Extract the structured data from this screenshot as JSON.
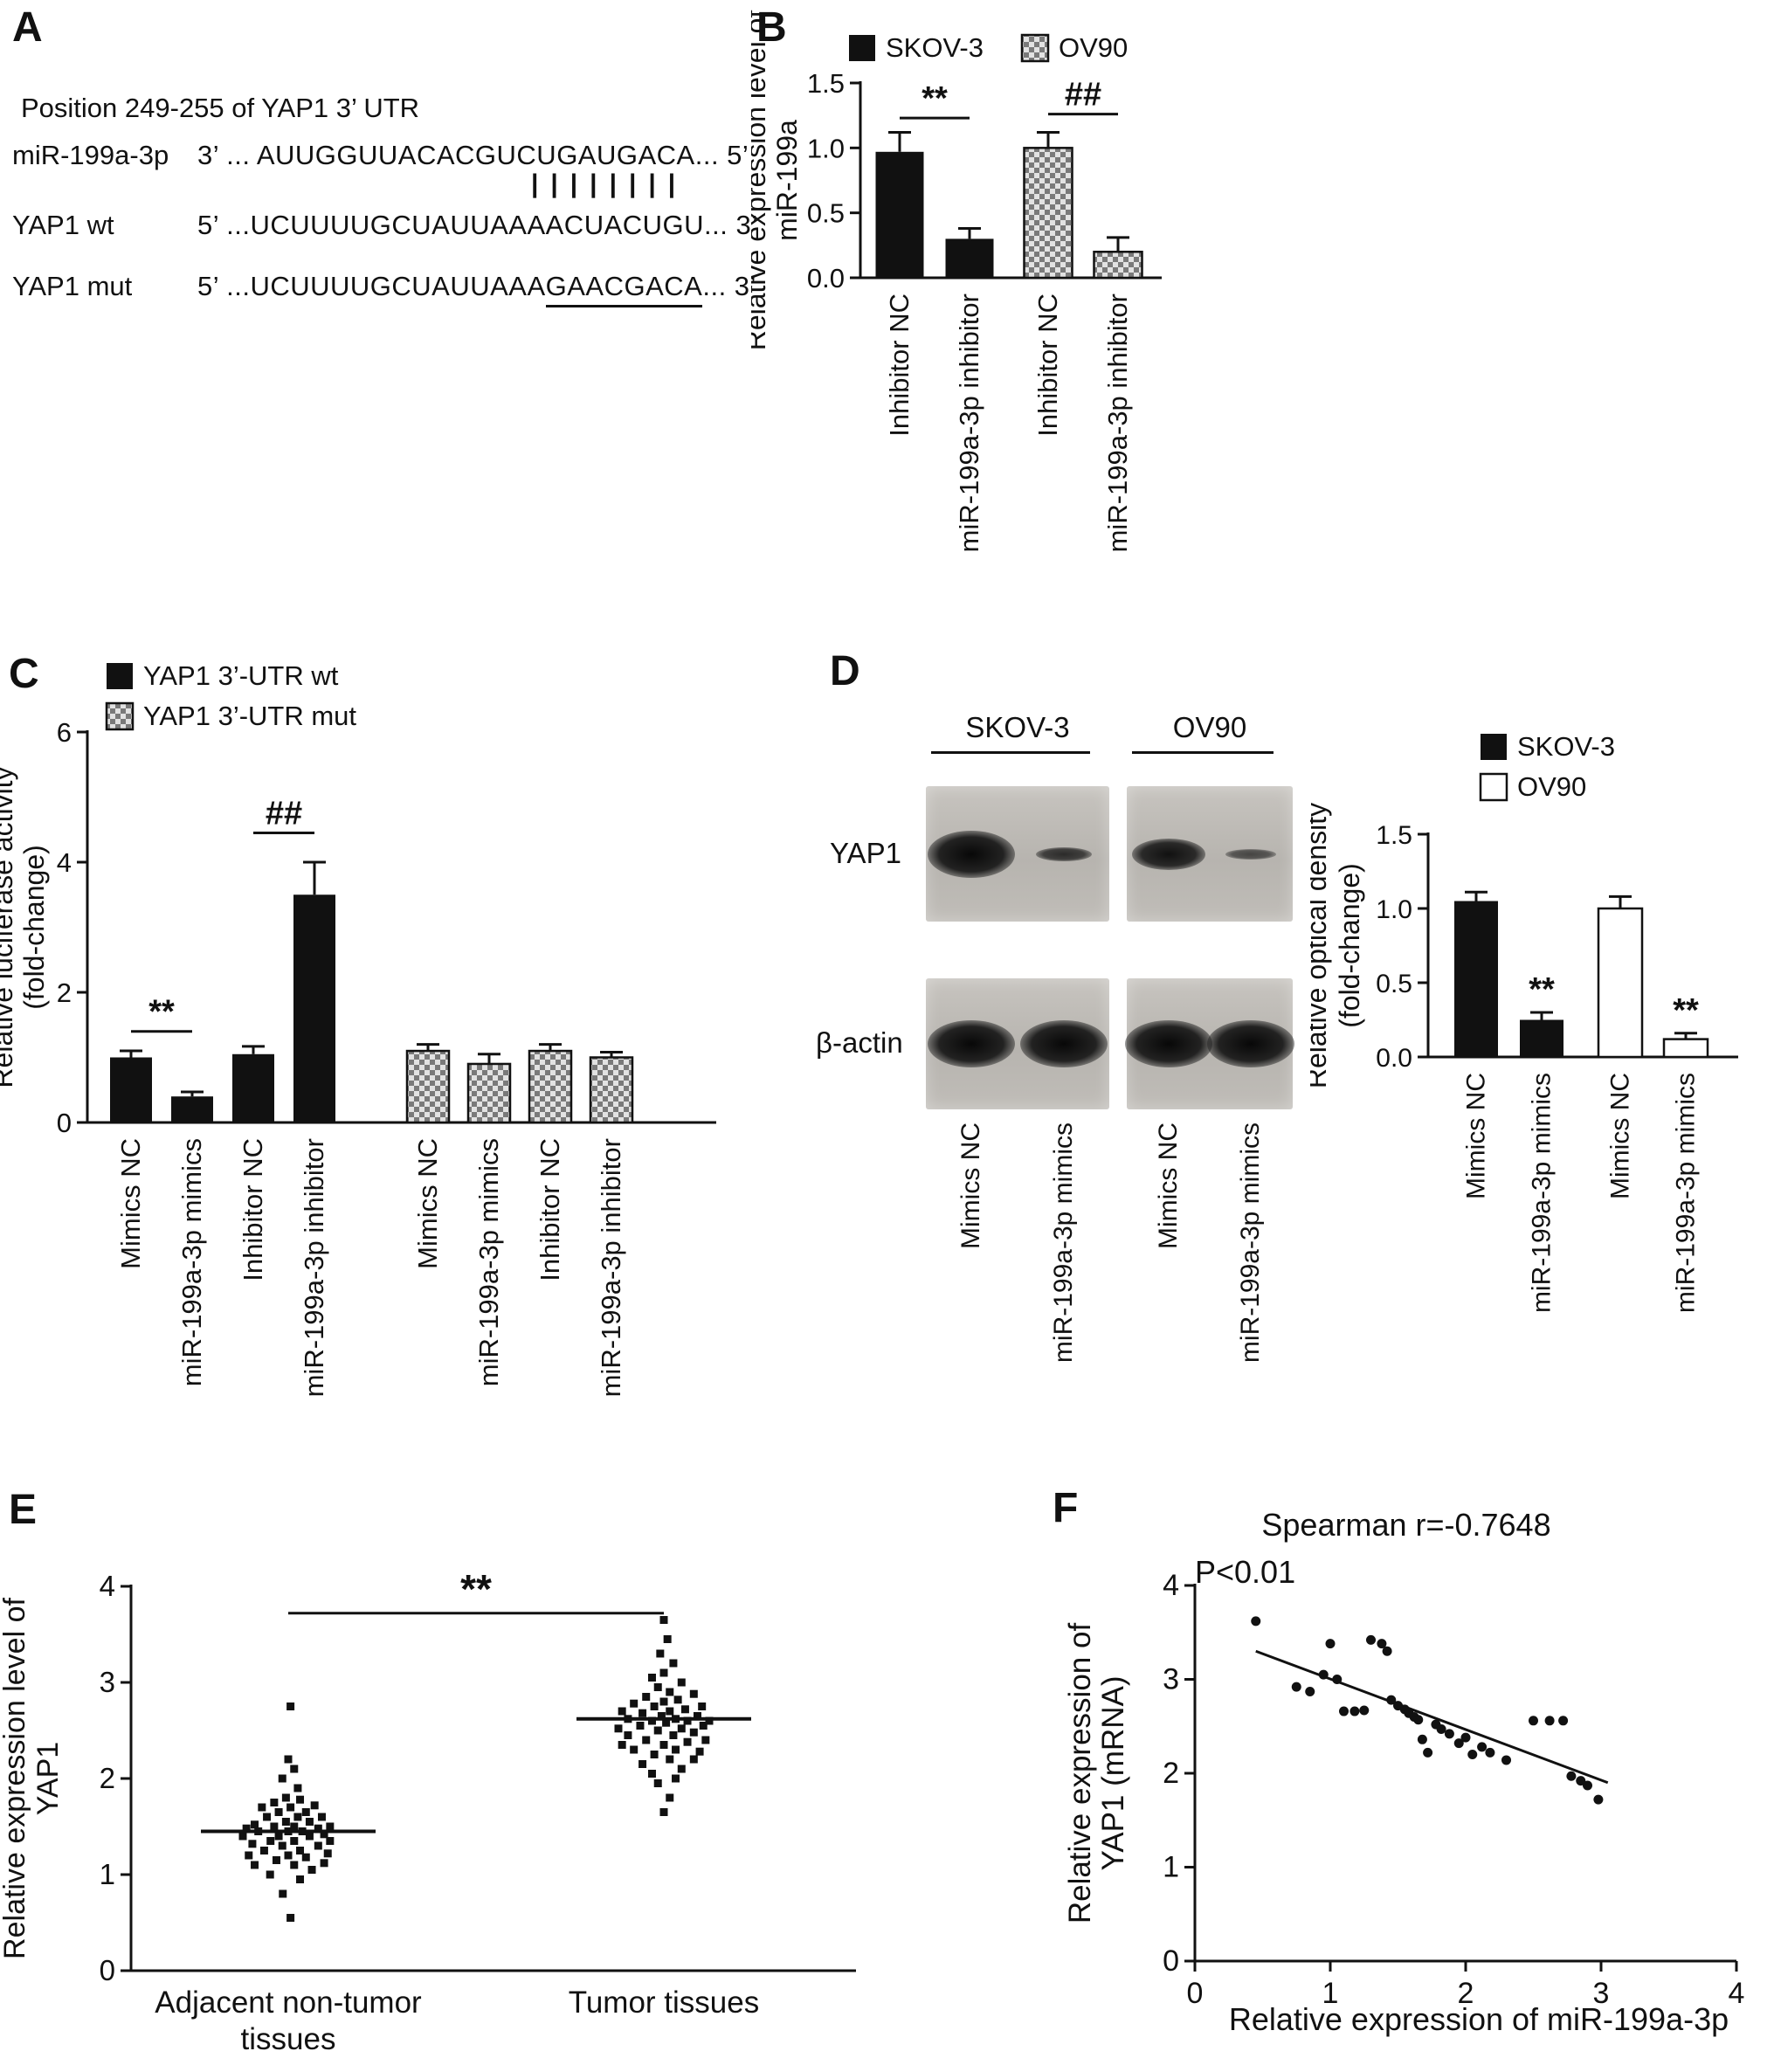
{
  "colors": {
    "ink": "#111111",
    "checker_dark": "#7a7a7a",
    "checker_light": "#e2e2e2",
    "blot_bg": "#bcb9b4",
    "white_bar": "#ffffff"
  },
  "panels": {
    "A": {
      "label": "A",
      "title": "Position 249-255 of YAP1 3’ UTR",
      "mirna": {
        "name": "miR-199a-3p",
        "prefix": "3’ ... ",
        "seq": "AUUGGUUACACGUCUGAUGACA",
        "suffix": "... 5’"
      },
      "pairing_marks": "||||||||",
      "wt": {
        "name": "YAP1 wt",
        "prefix": "5’ ...",
        "seq": "UCUUUUGCUAUUAAAACUACUGU",
        "suffix": "... 3’"
      },
      "mut": {
        "name": "YAP1 mut",
        "prefix": "5’ ...",
        "seq_plain": "UCUUUUGCUAUUAAA",
        "seq_underlined": "GAACGACA",
        "suffix": "... 3’"
      }
    },
    "B": {
      "label": "B"
    },
    "C": {
      "label": "C"
    },
    "D": {
      "label": "D",
      "blot": {
        "cell_lines": [
          "SKOV-3",
          "OV90"
        ],
        "protein_rows": [
          {
            "name": "YAP1",
            "bands": [
              "strong",
              "weak",
              "medium",
              "faint"
            ]
          },
          {
            "name": "β-actin",
            "bands": [
              "strong",
              "strong",
              "strong",
              "strong"
            ]
          }
        ],
        "lane_labels": [
          "Mimics NC",
          "miR-199a-3p mimics",
          "Mimics NC",
          "miR-199a-3p mimics"
        ]
      }
    },
    "E": {
      "label": "E"
    },
    "F": {
      "label": "F"
    }
  },
  "chart_data": [
    {
      "id": "B",
      "type": "bar",
      "ylabel_lines": [
        "Relative expression level of",
        "miR-199a"
      ],
      "ylim": [
        0,
        1.5
      ],
      "yticks": [
        {
          "v": 0,
          "label": "0.0"
        },
        {
          "v": 0.5,
          "label": "0.5"
        },
        {
          "v": 1,
          "label": "1.0"
        },
        {
          "v": 1.5,
          "label": "1.5"
        }
      ],
      "legend": [
        {
          "name": "SKOV-3",
          "style": "black"
        },
        {
          "name": "OV90",
          "style": "checker"
        }
      ],
      "bars": [
        {
          "label": "Inhibitor NC",
          "value": 0.97,
          "error": 0.15,
          "style": "black"
        },
        {
          "label": "miR-199a-3p inhibitor",
          "value": 0.3,
          "error": 0.08,
          "style": "black"
        },
        {
          "label": "Inhibitor NC",
          "value": 1.0,
          "error": 0.12,
          "style": "checker"
        },
        {
          "label": "miR-199a-3p inhibitor",
          "value": 0.2,
          "error": 0.11,
          "style": "checker"
        }
      ],
      "comparisons": [
        {
          "text": "**",
          "from": 0,
          "to": 1,
          "y": 1.23
        },
        {
          "text": "##",
          "from": 2,
          "to": 3,
          "y": 1.26
        }
      ]
    },
    {
      "id": "C",
      "type": "bar",
      "ylabel_lines": [
        "Relative luciferase activity",
        "(fold-change)"
      ],
      "ylim": [
        0,
        6
      ],
      "yticks": [
        {
          "v": 0,
          "label": "0"
        },
        {
          "v": 2,
          "label": "2"
        },
        {
          "v": 4,
          "label": "4"
        },
        {
          "v": 6,
          "label": "6"
        }
      ],
      "legend": [
        {
          "name": "YAP1 3’-UTR wt",
          "style": "black"
        },
        {
          "name": "YAP1 3’-UTR mut",
          "style": "checker"
        }
      ],
      "bars": [
        {
          "label": "Mimics NC",
          "value": 1.0,
          "error": 0.1,
          "style": "black"
        },
        {
          "label": "miR-199a-3p mimics",
          "value": 0.4,
          "error": 0.07,
          "style": "black"
        },
        {
          "label": "Inhibitor NC",
          "value": 1.05,
          "error": 0.12,
          "style": "black"
        },
        {
          "label": "miR-199a-3p inhibitor",
          "value": 3.5,
          "error": 0.5,
          "style": "black"
        },
        {
          "label": "Mimics NC",
          "value": 1.1,
          "error": 0.1,
          "style": "checker"
        },
        {
          "label": "miR-199a-3p mimics",
          "value": 0.9,
          "error": 0.15,
          "style": "checker"
        },
        {
          "label": "Inhibitor NC",
          "value": 1.1,
          "error": 0.1,
          "style": "checker"
        },
        {
          "label": "miR-199a-3p inhibitor",
          "value": 1.0,
          "error": 0.08,
          "style": "checker"
        }
      ],
      "comparisons": [
        {
          "text": "**",
          "from": 0,
          "to": 1,
          "y": 1.4
        },
        {
          "text": "##",
          "from": 2,
          "to": 3,
          "y": 4.45
        }
      ]
    },
    {
      "id": "D",
      "type": "bar",
      "ylabel_lines": [
        "Relative optical density",
        "(fold-change)"
      ],
      "ylim": [
        0,
        1.5
      ],
      "yticks": [
        {
          "v": 0,
          "label": "0.0"
        },
        {
          "v": 0.5,
          "label": "0.5"
        },
        {
          "v": 1,
          "label": "1.0"
        },
        {
          "v": 1.5,
          "label": "1.5"
        }
      ],
      "legend": [
        {
          "name": "SKOV-3",
          "style": "black"
        },
        {
          "name": "OV90",
          "style": "white"
        }
      ],
      "bars": [
        {
          "label": "Mimics NC",
          "value": 1.05,
          "error": 0.06,
          "style": "black"
        },
        {
          "label": "miR-199a-3p mimics",
          "value": 0.25,
          "error": 0.05,
          "style": "black",
          "sig": "**"
        },
        {
          "label": "Mimics NC",
          "value": 1.0,
          "error": 0.08,
          "style": "white"
        },
        {
          "label": "miR-199a-3p mimics",
          "value": 0.12,
          "error": 0.04,
          "style": "white",
          "sig": "**"
        }
      ],
      "comparisons": []
    },
    {
      "id": "E",
      "type": "dotplot",
      "ylabel_lines": [
        "Relative expression level of",
        "YAP1"
      ],
      "ylim": [
        0,
        4
      ],
      "yticks": [
        {
          "v": 0,
          "label": "0"
        },
        {
          "v": 1,
          "label": "1"
        },
        {
          "v": 2,
          "label": "2"
        },
        {
          "v": 3,
          "label": "3"
        },
        {
          "v": 4,
          "label": "4"
        }
      ],
      "comparison": {
        "text": "**",
        "y": 3.72
      },
      "groups": [
        {
          "label_lines": [
            "Adjacent non-tumor",
            "tissues"
          ],
          "mean": 1.45,
          "points": [
            [
              0.05,
              0.55
            ],
            [
              -0.12,
              0.8
            ],
            [
              0.26,
              0.95
            ],
            [
              -0.4,
              1.0
            ],
            [
              0.52,
              1.05
            ],
            [
              -0.74,
              1.1
            ],
            [
              0.13,
              1.1
            ],
            [
              0.79,
              1.12
            ],
            [
              -0.26,
              1.15
            ],
            [
              0.39,
              1.18
            ],
            [
              -0.87,
              1.2
            ],
            [
              0.0,
              1.2
            ],
            [
              0.87,
              1.22
            ],
            [
              -0.53,
              1.25
            ],
            [
              0.26,
              1.25
            ],
            [
              -0.13,
              1.3
            ],
            [
              0.66,
              1.3
            ],
            [
              -0.79,
              1.32
            ],
            [
              0.13,
              1.35
            ],
            [
              -0.39,
              1.35
            ],
            [
              0.92,
              1.35
            ],
            [
              -1.0,
              1.4
            ],
            [
              -0.21,
              1.4
            ],
            [
              0.47,
              1.4
            ],
            [
              0.79,
              1.42
            ],
            [
              -0.66,
              1.45
            ],
            [
              0.0,
              1.45
            ],
            [
              0.31,
              1.45
            ],
            [
              -0.92,
              1.48
            ],
            [
              0.66,
              1.48
            ],
            [
              -0.31,
              1.5
            ],
            [
              0.13,
              1.5
            ],
            [
              0.92,
              1.5
            ],
            [
              -0.74,
              1.52
            ],
            [
              -0.05,
              1.55
            ],
            [
              0.47,
              1.55
            ],
            [
              -0.47,
              1.6
            ],
            [
              0.21,
              1.6
            ],
            [
              0.74,
              1.6
            ],
            [
              -0.21,
              1.65
            ],
            [
              0.39,
              1.65
            ],
            [
              -0.58,
              1.7
            ],
            [
              0.05,
              1.7
            ],
            [
              0.58,
              1.72
            ],
            [
              -0.31,
              1.75
            ],
            [
              0.26,
              1.78
            ],
            [
              -0.05,
              1.8
            ],
            [
              0.21,
              1.9
            ],
            [
              -0.13,
              2.0
            ],
            [
              0.13,
              2.1
            ],
            [
              0.0,
              2.2
            ],
            [
              0.05,
              2.75
            ]
          ]
        },
        {
          "label_lines": [
            "Tumor tissues"
          ],
          "mean": 2.62,
          "points": [
            [
              0.0,
              1.65
            ],
            [
              0.13,
              1.8
            ],
            [
              -0.13,
              1.95
            ],
            [
              0.26,
              2.0
            ],
            [
              -0.26,
              2.05
            ],
            [
              0.39,
              2.1
            ],
            [
              -0.47,
              2.15
            ],
            [
              0.13,
              2.2
            ],
            [
              0.66,
              2.2
            ],
            [
              -0.21,
              2.25
            ],
            [
              0.79,
              2.28
            ],
            [
              -0.66,
              2.3
            ],
            [
              0.26,
              2.3
            ],
            [
              -0.92,
              2.35
            ],
            [
              0.0,
              2.35
            ],
            [
              0.52,
              2.38
            ],
            [
              0.92,
              2.4
            ],
            [
              -0.39,
              2.4
            ],
            [
              -0.79,
              2.45
            ],
            [
              0.21,
              2.45
            ],
            [
              0.66,
              2.48
            ],
            [
              -0.13,
              2.5
            ],
            [
              -1.0,
              2.52
            ],
            [
              0.39,
              2.52
            ],
            [
              0.87,
              2.55
            ],
            [
              -0.52,
              2.55
            ],
            [
              0.05,
              2.58
            ],
            [
              -0.26,
              2.6
            ],
            [
              0.52,
              2.6
            ],
            [
              1.0,
              2.6
            ],
            [
              -0.79,
              2.62
            ],
            [
              0.26,
              2.62
            ],
            [
              -0.05,
              2.65
            ],
            [
              0.74,
              2.65
            ],
            [
              -0.47,
              2.68
            ],
            [
              0.13,
              2.7
            ],
            [
              -0.92,
              2.7
            ],
            [
              0.47,
              2.72
            ],
            [
              0.84,
              2.75
            ],
            [
              -0.21,
              2.75
            ],
            [
              -0.66,
              2.78
            ],
            [
              0.0,
              2.8
            ],
            [
              0.31,
              2.82
            ],
            [
              -0.39,
              2.85
            ],
            [
              0.66,
              2.88
            ],
            [
              0.13,
              2.9
            ],
            [
              -0.13,
              2.95
            ],
            [
              0.39,
              3.0
            ],
            [
              -0.26,
              3.05
            ],
            [
              0.0,
              3.1
            ],
            [
              0.21,
              3.2
            ],
            [
              -0.08,
              3.3
            ],
            [
              0.08,
              3.45
            ],
            [
              0.0,
              3.65
            ]
          ]
        }
      ]
    },
    {
      "id": "F",
      "type": "scatter",
      "title": "Spearman r=-0.7648",
      "subtitle": "P<0.01",
      "xlabel": "Relative expression of miR-199a-3p",
      "ylabel_lines": [
        "Relative expression of",
        "YAP1 (mRNA)"
      ],
      "xlim": [
        0,
        4
      ],
      "ylim": [
        0,
        4
      ],
      "xticks": [
        {
          "v": 0,
          "label": "0"
        },
        {
          "v": 1,
          "label": "1"
        },
        {
          "v": 2,
          "label": "2"
        },
        {
          "v": 3,
          "label": "3"
        },
        {
          "v": 4,
          "label": "4"
        }
      ],
      "yticks": [
        {
          "v": 0,
          "label": "0"
        },
        {
          "v": 1,
          "label": "1"
        },
        {
          "v": 2,
          "label": "2"
        },
        {
          "v": 3,
          "label": "3"
        },
        {
          "v": 4,
          "label": "4"
        }
      ],
      "trendline": {
        "x1": 0.45,
        "y1": 3.3,
        "x2": 3.05,
        "y2": 1.9
      },
      "points": [
        [
          0.45,
          3.62
        ],
        [
          0.75,
          2.92
        ],
        [
          0.85,
          2.87
        ],
        [
          0.95,
          3.05
        ],
        [
          1.0,
          3.38
        ],
        [
          1.05,
          3.0
        ],
        [
          1.1,
          2.66
        ],
        [
          1.18,
          2.66
        ],
        [
          1.25,
          2.67
        ],
        [
          1.3,
          3.42
        ],
        [
          1.38,
          3.38
        ],
        [
          1.42,
          3.3
        ],
        [
          1.45,
          2.78
        ],
        [
          1.5,
          2.72
        ],
        [
          1.55,
          2.68
        ],
        [
          1.58,
          2.64
        ],
        [
          1.62,
          2.6
        ],
        [
          1.65,
          2.57
        ],
        [
          1.68,
          2.36
        ],
        [
          1.72,
          2.22
        ],
        [
          1.78,
          2.52
        ],
        [
          1.82,
          2.47
        ],
        [
          1.88,
          2.42
        ],
        [
          1.95,
          2.32
        ],
        [
          2.0,
          2.38
        ],
        [
          2.05,
          2.2
        ],
        [
          2.12,
          2.28
        ],
        [
          2.18,
          2.22
        ],
        [
          2.3,
          2.14
        ],
        [
          2.5,
          2.56
        ],
        [
          2.62,
          2.56
        ],
        [
          2.72,
          2.56
        ],
        [
          2.78,
          1.97
        ],
        [
          2.85,
          1.92
        ],
        [
          2.9,
          1.87
        ],
        [
          2.98,
          1.72
        ]
      ]
    }
  ]
}
